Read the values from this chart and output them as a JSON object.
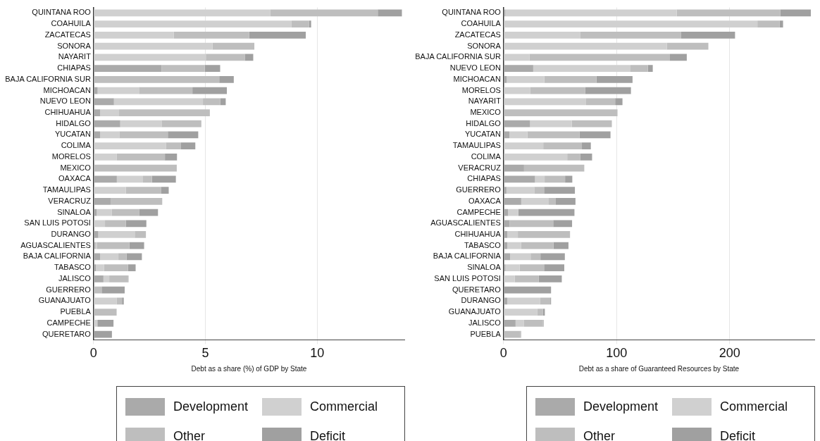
{
  "chart_data": [
    {
      "type": "bar",
      "orientation": "horizontal",
      "stacked": true,
      "xlabel": "Debt as a share (%) of GDP by State",
      "xlim": [
        0,
        13.9
      ],
      "xticks": [
        0,
        5,
        10
      ],
      "grid": "x",
      "legend": "bottom",
      "categories": [
        "QUINTANA ROO",
        "COAHUILA",
        "ZACATECAS",
        "SONORA",
        "NAYARIT",
        "CHIAPAS",
        "BAJA CALIFORNIA SUR",
        "MICHOACAN",
        "NUEVO LEON",
        "CHIHUAHUA",
        "HIDALGO",
        "YUCATAN",
        "COLIMA",
        "MORELOS",
        "MEXICO",
        "OAXACA",
        "TAMAULIPAS",
        "VERACRUZ",
        "SINALOA",
        "SAN LUIS POTOSI",
        "DURANGO",
        "AGUASCALIENTES",
        "BAJA CALIFORNIA",
        "TABASCO",
        "JALISCO",
        "GUERRERO",
        "GUANAJUATO",
        "PUEBLA",
        "CAMPECHE",
        "QUERETARO"
      ],
      "series": [
        {
          "name": "Development",
          "color": "#aaaaaa",
          "values": [
            null,
            0,
            0,
            0,
            0,
            3.04,
            0,
            0.18,
            0.91,
            0.29,
            1.19,
            0.29,
            0,
            0,
            0,
            1.04,
            0,
            0.76,
            0.14,
            0,
            0.21,
            0.08,
            0.29,
            0.1,
            0.44,
            null,
            0,
            0,
            0,
            0
          ]
        },
        {
          "name": "Commercial",
          "color": "#d0d0d0",
          "values": [
            7.91,
            8.84,
            3.59,
            5.32,
            5.02,
            0,
            0,
            1.85,
            3.98,
            0.85,
            1.85,
            0.86,
            3.23,
            1.04,
            0,
            1.17,
            1.44,
            0,
            0.68,
            0.51,
            1.63,
            0.06,
            0.82,
            0.37,
            0.26,
            0,
            1.04,
            0,
            0.17,
            0
          ]
        },
        {
          "name": "Other",
          "color": "#bebebe",
          "values": [
            4.8,
            0.8,
            3.37,
            1.87,
            1.74,
            1.93,
            5.62,
            2.39,
            0.78,
            4.06,
            1.78,
            2.17,
            0.68,
            2.15,
            3.72,
            0.4,
            1.57,
            2.31,
            1.23,
            0.93,
            0.5,
            1.46,
            0.36,
            1.07,
            0.83,
            0.36,
            0.23,
            1.03,
            0,
            0
          ]
        },
        {
          "name": "Deficit",
          "color": "#a0a0a0",
          "values": [
            1.08,
            0.09,
            2.53,
            0,
            0.38,
            0.69,
            0.65,
            1.54,
            0.24,
            0,
            0,
            1.36,
            0.64,
            0.54,
            0,
            1.07,
            0.35,
            0,
            0.83,
            0.92,
            0,
            0.66,
            0.69,
            0.34,
            0.03,
            1.03,
            0.08,
            0,
            0.72,
            0.82
          ]
        }
      ]
    },
    {
      "type": "bar",
      "orientation": "horizontal",
      "stacked": true,
      "xlabel": "Debt as a share of Guaranteed Resources by State",
      "xlim": [
        0,
        275
      ],
      "xticks": [
        0,
        100,
        200
      ],
      "grid": "x",
      "legend": "bottom",
      "categories": [
        "QUINTANA ROO",
        "COAHUILA",
        "ZACATECAS",
        "SONORA",
        "BAJA CALIFORNIA SUR",
        "NUEVO LEON",
        "MICHOACAN",
        "MORELOS",
        "NAYARIT",
        "MEXICO",
        "HIDALGO",
        "YUCATAN",
        "TAMAULIPAS",
        "COLIMA",
        "VERACRUZ",
        "CHIAPAS",
        "GUERRERO",
        "OAXACA",
        "CAMPECHE",
        "AGUASCALIENTES",
        "CHIHUAHUA",
        "TABASCO",
        "BAJA CALIFORNIA",
        "SINALOA",
        "SAN LUIS POTOSI",
        "QUERETARO",
        "DURANGO",
        "GUANAJUATO",
        "JALISCO",
        "PUEBLA"
      ],
      "series": [
        {
          "name": "Development",
          "color": "#aaaaaa",
          "values": [
            1.4,
            0,
            0,
            0,
            null,
            26.2,
            2.8,
            0,
            0,
            0,
            23.4,
            5.1,
            0,
            0,
            18.1,
            27.8,
            2.5,
            15.6,
            3.9,
            5.3,
            3.2,
            3.2,
            5.7,
            1.6,
            null,
            0,
            3.2,
            0,
            10.6,
            0
          ]
        },
        {
          "name": "Commercial",
          "color": "#d0d0d0",
          "values": [
            151.8,
            224.6,
            68,
            144.4,
            23,
            86.1,
            33.3,
            23.7,
            73,
            0,
            37,
            16,
            35.1,
            56.3,
            0,
            8.5,
            24.6,
            24.4,
            9.2,
            0,
            9.4,
            12.2,
            18.2,
            12.6,
            9.9,
            0,
            29.2,
            29.9,
            7.5,
            0
          ]
        },
        {
          "name": "Other",
          "color": "#bebebe",
          "values": [
            91.8,
            19.7,
            88.8,
            36.8,
            124.2,
            15.4,
            46.1,
            48.6,
            25.7,
            100.8,
            35.4,
            46.2,
            34.2,
            11.4,
            53.3,
            18.1,
            8.7,
            6.2,
            0,
            38.6,
            46.2,
            28.7,
            8.7,
            21.6,
            21.1,
            0,
            8.9,
            5,
            16.6,
            14.9
          ]
        },
        {
          "name": "Deficit",
          "color": "#a0a0a0",
          "values": [
            26.9,
            3,
            48,
            0,
            14.9,
            4.3,
            31.9,
            40.4,
            6.5,
            0,
            0,
            27.3,
            7.9,
            10.6,
            0,
            6.4,
            27.3,
            17.4,
            49.6,
            16.7,
            0,
            13.3,
            21.6,
            17.9,
            20.5,
            42,
            0.7,
            1.6,
            0.7,
            0.5
          ]
        }
      ]
    }
  ]
}
